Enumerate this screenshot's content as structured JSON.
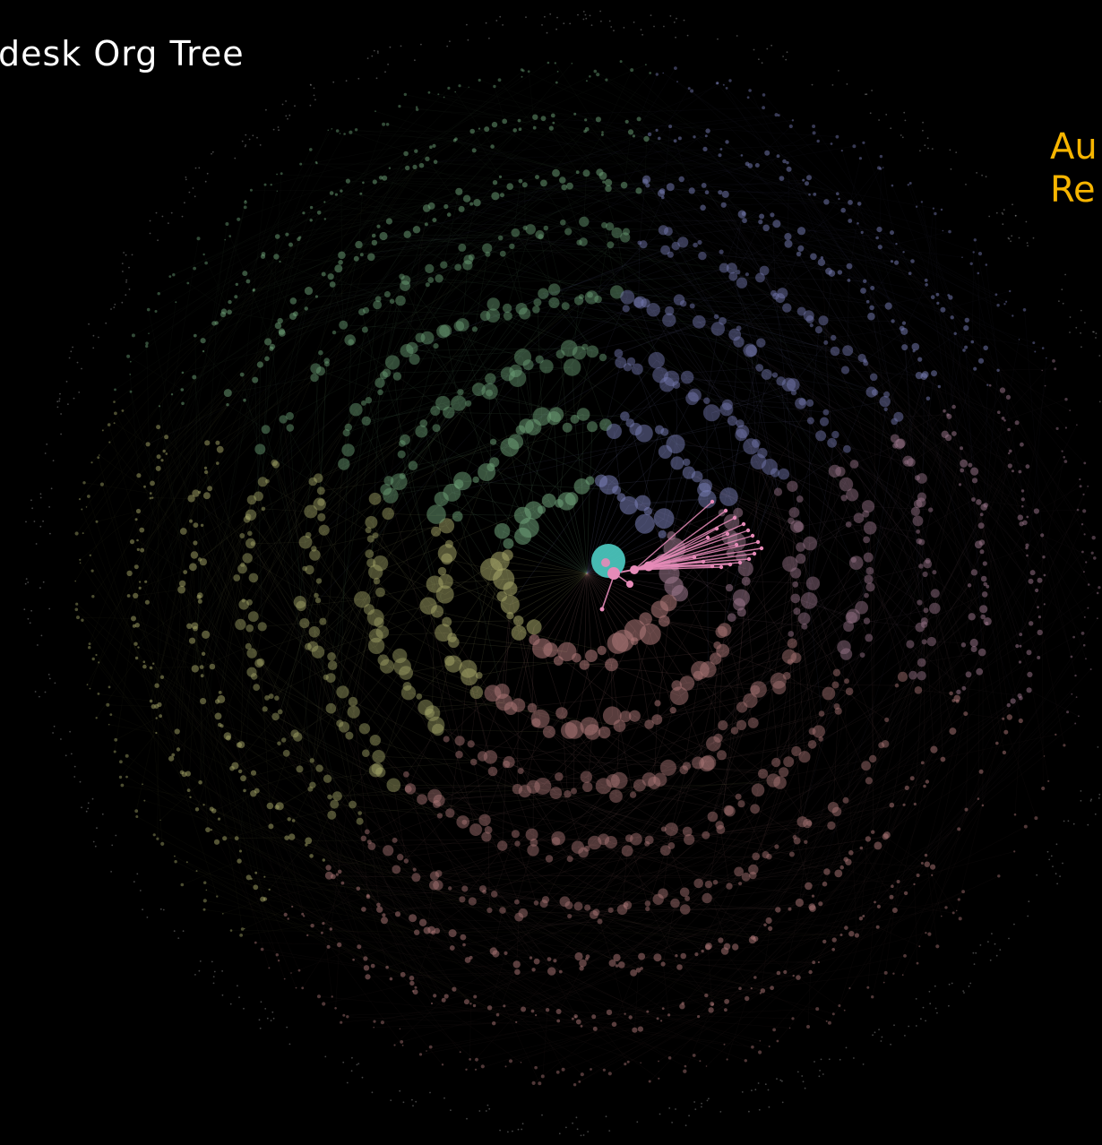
{
  "title": "desk Org Tree",
  "highlight_label": {
    "line1": "Au",
    "line2": "Re",
    "color": "#f7b500"
  },
  "colors": {
    "background": "#000000",
    "title": "#ffffff",
    "root_node": "#4ecdc4",
    "highlight_branch": "#e68bb8",
    "sector_green": "#6fa37a",
    "sector_olive": "#a7a86a",
    "sector_blue": "#7a7fb8",
    "sector_rose": "#b07a7a",
    "sector_mauve": "#a07a90",
    "outer_ring": "#9a9a9a"
  },
  "icons": {
    "root": "root-node-icon",
    "highlight": "highlight-node-icon"
  }
}
